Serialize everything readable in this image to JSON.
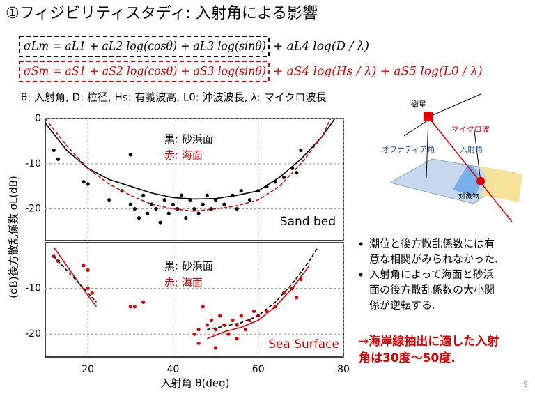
{
  "title": "①フィジビリティスタディ: 入射角による影響",
  "equations": [
    {
      "boxed": "σLm = aL1 + aL2 log(cosθ) + aL3 log(sinθ)",
      "rest": "+ aL4 log(D / λ)",
      "color": "#000000"
    },
    {
      "boxed": "σSm = aS1 + aS2 log(cosθ) + aS3 log(sinθ)",
      "rest": "+ aS4 log(Hs / λ) + aS5 log(L0 / λ)",
      "color": "#e00000"
    }
  ],
  "symbols_note": "θ: 入射角, D: 粒径, Hs: 有義波高, L0: 沖波波長, λ: マイクロ波長",
  "diagram": {
    "satellite": "衛星",
    "microwave": "マイクロ波",
    "off_nadir": "オフナディア角",
    "incidence": "入射角",
    "target": "対象物"
  },
  "bullets": [
    [
      "潮位と後方散乱係数には有",
      "意な相関がみられなかった."
    ],
    [
      "入射角によって海面と砂浜",
      "面の後方散乱係数の大小関",
      "係が逆転する."
    ]
  ],
  "conclusion": [
    "→海岸線抽出に適した入射",
    "角は30度～50度."
  ],
  "page_number": "9",
  "chart_data": [
    {
      "type": "scatter",
      "ylabel": "(dB)後方散乱係数 σL(dB)",
      "xlim": [
        10,
        80
      ],
      "ylim": [
        -27,
        0
      ],
      "yticks": [
        0,
        -10,
        -20
      ],
      "xgrid": [
        20,
        40,
        60,
        80
      ],
      "grid": true,
      "notes": [
        {
          "text": "黒: 砂浜面",
          "color": "#000000"
        },
        {
          "text": "赤: 海面",
          "color": "#e00000"
        },
        {
          "text": "Sand bed",
          "color": "#000000"
        }
      ],
      "series": [
        {
          "style": "points",
          "color": "#000000",
          "x": [
            12,
            13,
            19,
            20,
            25,
            28,
            30,
            30,
            31,
            32,
            33,
            34,
            35,
            36,
            37,
            38,
            39,
            40,
            41,
            42,
            43,
            44,
            45,
            46,
            47,
            48,
            49,
            50,
            52,
            54,
            55,
            56,
            58,
            60,
            62,
            64,
            66,
            68,
            69,
            70
          ],
          "values": [
            -7,
            -9,
            -14,
            -14.5,
            -18,
            -16,
            -8,
            -19,
            -20,
            -22,
            -17,
            -21,
            -19,
            -20,
            -23,
            -18,
            -21,
            -19,
            -20,
            -17,
            -22,
            -18,
            -20,
            -21,
            -19,
            -17,
            -20,
            -18,
            -19,
            -17,
            -20,
            -16,
            -18,
            -16,
            -15,
            -14,
            -13,
            -11,
            -12,
            -7
          ]
        },
        {
          "style": "line",
          "color": "#000000",
          "x": [
            10,
            15,
            20,
            25,
            30,
            35,
            40,
            45,
            50,
            55,
            60,
            65,
            70,
            75,
            78
          ],
          "values": [
            -1,
            -7,
            -11,
            -13.5,
            -15,
            -16.5,
            -17.5,
            -17.8,
            -17.7,
            -17,
            -16,
            -13,
            -9,
            -4,
            0
          ]
        },
        {
          "style": "dashed",
          "color": "#e00000",
          "x": [
            10,
            15,
            20,
            25,
            30,
            35,
            40,
            45,
            50,
            55,
            60,
            65,
            70,
            75,
            77
          ],
          "values": [
            0,
            -6,
            -11,
            -14.5,
            -17,
            -19,
            -20,
            -20.5,
            -20,
            -19.3,
            -18,
            -15,
            -10,
            -4,
            0
          ]
        }
      ]
    },
    {
      "type": "scatter",
      "xlabel": "入射角 θ(deg)",
      "xlim": [
        10,
        80
      ],
      "ylim": [
        -25,
        0
      ],
      "xticks": [
        20,
        40,
        60,
        80
      ],
      "yticks": [
        -10,
        -20
      ],
      "grid": true,
      "notes": [
        {
          "text": "黒: 砂浜面",
          "color": "#000000"
        },
        {
          "text": "赤: 海面",
          "color": "#e00000"
        },
        {
          "text": "Sea Surface",
          "color": "#e00000"
        }
      ],
      "series": [
        {
          "style": "points",
          "color": "#e00000",
          "x": [
            12,
            13,
            19,
            20,
            20,
            21,
            30,
            31,
            33,
            45,
            46,
            47,
            48,
            49,
            50,
            51,
            52,
            53,
            54,
            55,
            56,
            57,
            58,
            59,
            60,
            62,
            64,
            66,
            68,
            69,
            70,
            46,
            50,
            55
          ],
          "values": [
            -3,
            -4,
            -5,
            -6,
            -10,
            -11,
            -14,
            -14,
            -13,
            -20,
            -19,
            -14,
            -18,
            -17,
            -19,
            -16,
            -18,
            -20,
            -17,
            -18,
            -16,
            -19,
            -17,
            -15,
            -16,
            -15,
            -14,
            -11,
            -10,
            -12,
            -8,
            -22,
            -23,
            -21
          ]
        },
        {
          "style": "line",
          "color": "#e00000",
          "x": [
            12,
            15,
            18,
            22,
            44,
            48,
            52,
            56,
            60,
            64,
            68,
            72
          ],
          "values": [
            -1,
            -5,
            -9,
            -14,
            null,
            -21,
            -19.5,
            -18.5,
            -17,
            -14,
            -10,
            -5
          ]
        },
        {
          "style": "dashed",
          "color": "#000000",
          "x": [
            12,
            15,
            18,
            22,
            44,
            48,
            52,
            56,
            60,
            64,
            68,
            72,
            74
          ],
          "values": [
            -3,
            -6,
            -9,
            -13,
            null,
            -19,
            -18.3,
            -17.5,
            -16,
            -13,
            -9,
            -4,
            -1
          ]
        }
      ]
    }
  ]
}
